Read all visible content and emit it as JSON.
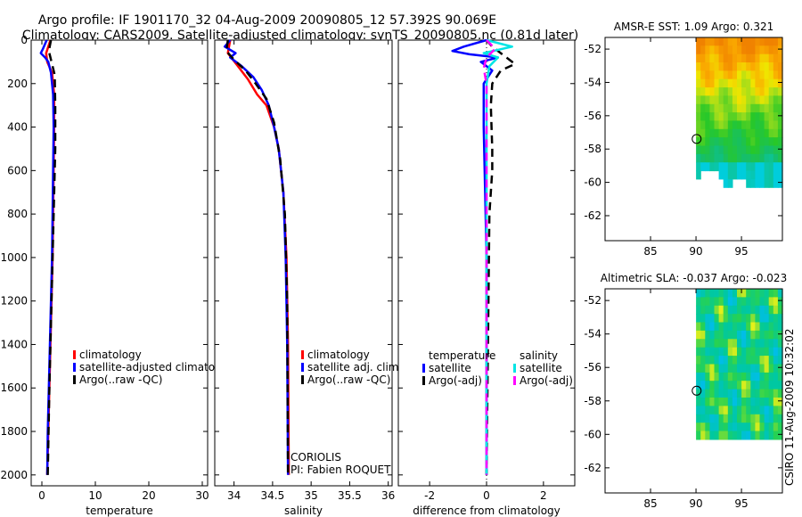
{
  "figure": {
    "title_line1": "Argo profile: IF 1901170_32 04-Aug-2009 20090805_12 57.392S 90.069E",
    "title_line2": "Climatology: CARS2009. Satellite-adjusted climatology: synTS_20090805.nc (0.81d later)",
    "side_label": "CSIRO 11-Aug-2009 10:32:02",
    "annotation_line1": "CORIOLIS",
    "annotation_line2": "PI: Fabien ROQUET"
  },
  "colors": {
    "climatology": "#ff0000",
    "satellite": "#0000ff",
    "argo": "#000000",
    "salinity_satellite": "#00e5e5",
    "salinity_argo": "#ff00ff"
  },
  "chart_data": [
    {
      "type": "line",
      "id": "temperature",
      "xlabel": "temperature",
      "xlim": [
        -2,
        31
      ],
      "ylim": [
        2050,
        0
      ],
      "xticks": [
        0,
        10,
        20,
        30
      ],
      "yticks": [
        0,
        200,
        400,
        600,
        800,
        1000,
        1200,
        1400,
        1600,
        1800,
        2000
      ],
      "legend": [
        "climatology",
        "satellite-adjusted climatolog",
        "Argo(..raw -QC)"
      ],
      "series": [
        {
          "name": "climatology",
          "color_key": "climatology",
          "points": [
            [
              1.6,
              0
            ],
            [
              1.2,
              30
            ],
            [
              0.8,
              60
            ],
            [
              1.0,
              100
            ],
            [
              1.9,
              150
            ],
            [
              2.3,
              250
            ],
            [
              2.3,
              400
            ],
            [
              2.2,
              600
            ],
            [
              2.0,
              1000
            ],
            [
              1.6,
              1400
            ],
            [
              1.2,
              1800
            ],
            [
              1.0,
              2000
            ]
          ]
        },
        {
          "name": "satellite-adjusted climatolog",
          "color_key": "satellite",
          "points": [
            [
              0.9,
              0
            ],
            [
              0.2,
              40
            ],
            [
              -0.2,
              60
            ],
            [
              0.6,
              80
            ],
            [
              1.2,
              100
            ],
            [
              1.7,
              150
            ],
            [
              2.1,
              250
            ],
            [
              2.2,
              400
            ],
            [
              2.1,
              600
            ],
            [
              1.9,
              1000
            ],
            [
              1.5,
              1400
            ],
            [
              1.1,
              1800
            ],
            [
              1.0,
              2000
            ]
          ]
        },
        {
          "name": "Argo(..raw -QC)",
          "color_key": "argo",
          "dashed": true,
          "points": [
            [
              1.7,
              0
            ],
            [
              1.3,
              50
            ],
            [
              1.8,
              100
            ],
            [
              2.4,
              160
            ],
            [
              2.5,
              300
            ],
            [
              2.5,
              500
            ],
            [
              2.2,
              800
            ],
            [
              1.8,
              1200
            ],
            [
              1.4,
              1600
            ],
            [
              1.1,
              2000
            ]
          ]
        }
      ]
    },
    {
      "type": "line",
      "id": "salinity",
      "xlabel": "salinity",
      "xlim": [
        33.75,
        36.05
      ],
      "ylim": [
        2050,
        0
      ],
      "xticks": [
        34,
        34.5,
        35,
        35.5,
        36
      ],
      "legend": [
        "climatology",
        "satellite adj. clim.",
        "Argo(..raw -QC)"
      ],
      "series": [
        {
          "name": "climatology",
          "color_key": "climatology",
          "points": [
            [
              33.95,
              0
            ],
            [
              33.92,
              60
            ],
            [
              34.05,
              120
            ],
            [
              34.18,
              180
            ],
            [
              34.3,
              250
            ],
            [
              34.42,
              300
            ],
            [
              34.52,
              400
            ],
            [
              34.58,
              500
            ],
            [
              34.64,
              700
            ],
            [
              34.68,
              1000
            ],
            [
              34.7,
              1400
            ],
            [
              34.71,
              2000
            ]
          ]
        },
        {
          "name": "satellite adj. clim.",
          "color_key": "satellite",
          "points": [
            [
              33.95,
              0
            ],
            [
              33.88,
              30
            ],
            [
              34.02,
              60
            ],
            [
              33.95,
              80
            ],
            [
              34.1,
              120
            ],
            [
              34.25,
              170
            ],
            [
              34.36,
              230
            ],
            [
              34.45,
              300
            ],
            [
              34.52,
              400
            ],
            [
              34.58,
              500
            ],
            [
              34.64,
              700
            ],
            [
              34.67,
              1000
            ],
            [
              34.69,
              1400
            ],
            [
              34.7,
              2000
            ]
          ]
        },
        {
          "name": "Argo(..raw -QC)",
          "color_key": "argo",
          "dashed": true,
          "points": [
            [
              33.92,
              0
            ],
            [
              33.9,
              50
            ],
            [
              34.0,
              90
            ],
            [
              34.15,
              140
            ],
            [
              34.28,
              200
            ],
            [
              34.42,
              270
            ],
            [
              34.52,
              380
            ],
            [
              34.6,
              550
            ],
            [
              34.66,
              800
            ],
            [
              34.69,
              1200
            ],
            [
              34.7,
              2000
            ]
          ]
        }
      ]
    },
    {
      "type": "line",
      "id": "difference",
      "xlabel": "difference from climatology",
      "xlim": [
        -3.1,
        3.1
      ],
      "ylim": [
        2050,
        0
      ],
      "xticks": [
        -2,
        0,
        2
      ],
      "legend_groups": [
        {
          "title": "temperature",
          "items": [
            "satellite",
            "Argo(-adj)"
          ]
        },
        {
          "title": "salinity",
          "items": [
            "satellite",
            "Argo(-adj)"
          ]
        }
      ],
      "series": [
        {
          "name": "temperature satellite",
          "color_key": "satellite",
          "points": [
            [
              0,
              0
            ],
            [
              -0.8,
              30
            ],
            [
              -1.2,
              50
            ],
            [
              -0.6,
              65
            ],
            [
              0.4,
              80
            ],
            [
              -0.2,
              100
            ],
            [
              0.2,
              140
            ],
            [
              -0.1,
              200
            ],
            [
              -0.1,
              400
            ],
            [
              0,
              1000
            ],
            [
              0,
              2000
            ]
          ]
        },
        {
          "name": "temperature Argo(-adj)",
          "color_key": "argo",
          "dashed": true,
          "points": [
            [
              0,
              0
            ],
            [
              0.2,
              30
            ],
            [
              0.6,
              70
            ],
            [
              1.0,
              110
            ],
            [
              0.5,
              140
            ],
            [
              0.2,
              200
            ],
            [
              0.15,
              300
            ],
            [
              0.2,
              500
            ],
            [
              0.2,
              600
            ],
            [
              0.1,
              800
            ],
            [
              0,
              2000
            ]
          ]
        },
        {
          "name": "salinity satellite",
          "color_key": "salinity_satellite",
          "points": [
            [
              0,
              0
            ],
            [
              0.9,
              30
            ],
            [
              -0.1,
              60
            ],
            [
              0.4,
              80
            ],
            [
              0.1,
              120
            ],
            [
              0,
              200
            ],
            [
              0,
              400
            ],
            [
              0,
              2000
            ]
          ]
        },
        {
          "name": "salinity Argo(-adj)",
          "color_key": "salinity_argo",
          "dashed": true,
          "points": [
            [
              0,
              0
            ],
            [
              0.3,
              40
            ],
            [
              0,
              80
            ],
            [
              -0.1,
              130
            ],
            [
              0,
              200
            ],
            [
              0,
              400
            ],
            [
              0,
              2000
            ]
          ]
        }
      ]
    },
    {
      "type": "heatmap",
      "id": "sst_map",
      "title": "AMSR-E SST: 1.09 Argo: 0.321",
      "xlim": [
        80,
        99.5
      ],
      "ylim": [
        -63.5,
        -51.3
      ],
      "xticks": [
        85,
        90,
        95
      ],
      "yticks": [
        -52,
        -54,
        -56,
        -58,
        -60,
        -62
      ],
      "argo_position": {
        "lon": 90.07,
        "lat": -57.39
      },
      "data_lon_range": [
        90,
        99.5
      ],
      "data_lat_range": [
        -60.2,
        -51.3
      ]
    },
    {
      "type": "heatmap",
      "id": "sla_map",
      "title": "Altimetric SLA: -0.037 Argo: -0.023",
      "xlim": [
        80,
        99.5
      ],
      "ylim": [
        -63.5,
        -51.3
      ],
      "xticks": [
        85,
        90,
        95
      ],
      "yticks": [
        -52,
        -54,
        -56,
        -58,
        -60,
        -62
      ],
      "argo_position": {
        "lon": 90.07,
        "lat": -57.39
      },
      "data_lon_range": [
        90,
        99.5
      ],
      "data_lat_range": [
        -60.1,
        -51.3
      ]
    }
  ]
}
